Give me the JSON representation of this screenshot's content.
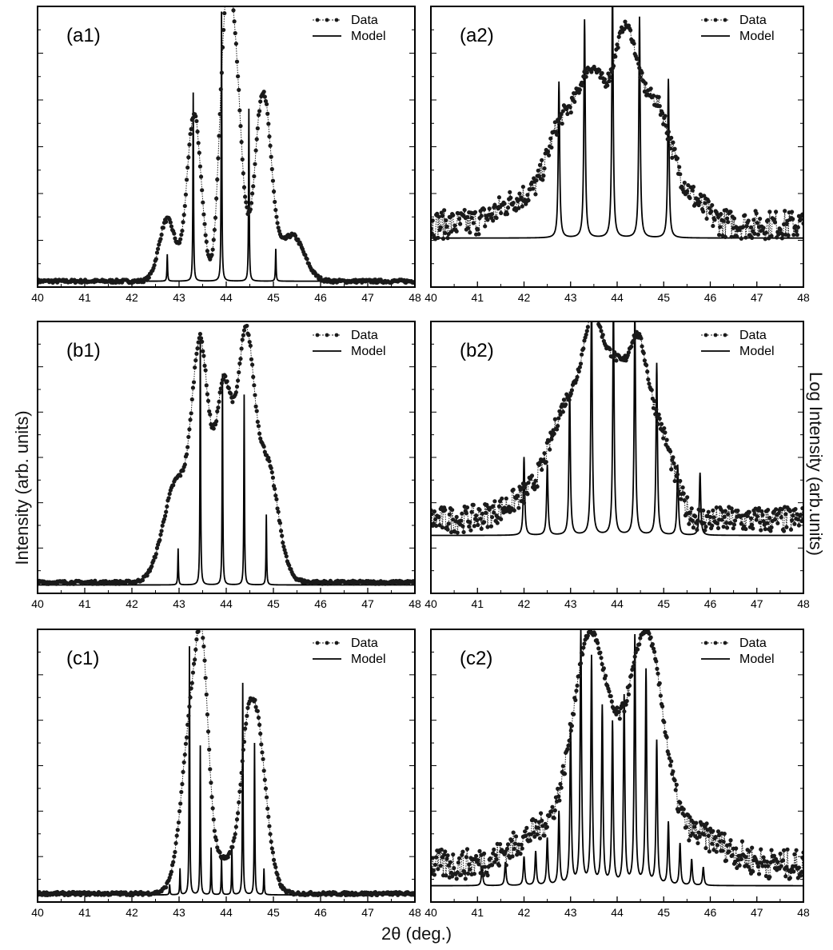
{
  "figure": {
    "ylabel_left": "Intensity (arb. units)",
    "ylabel_right": "Log Intensity (arb.units)",
    "xlabel": "2θ (deg.)"
  },
  "chart_data": [
    {
      "id": "a1",
      "type": "line",
      "panel_label": "(a1)",
      "scale": "linear",
      "xlim": [
        40,
        48
      ],
      "ylim": [
        0,
        1
      ],
      "x_ticks": [
        40,
        41,
        42,
        43,
        44,
        45,
        46,
        47,
        48
      ],
      "legend": [
        "Data",
        "Model"
      ],
      "legend_position": "top-right",
      "data_peaks": [
        [
          42.75,
          0.23,
          0.17
        ],
        [
          43.32,
          0.62,
          0.15
        ],
        [
          43.95,
          0.55,
          0.12
        ],
        [
          44.15,
          0.88,
          0.16
        ],
        [
          44.78,
          0.7,
          0.17
        ],
        [
          45.4,
          0.17,
          0.25
        ]
      ],
      "data_baseline": 0.01,
      "model_lines": [
        [
          42.75,
          0.1
        ],
        [
          43.3,
          0.7
        ],
        [
          43.9,
          1.0
        ],
        [
          44.48,
          0.64
        ],
        [
          45.05,
          0.12
        ]
      ],
      "model_baseline": 0.01
    },
    {
      "id": "a2",
      "type": "line",
      "panel_label": "(a2)",
      "scale": "log",
      "xlim": [
        40,
        48
      ],
      "ylim": [
        0,
        1
      ],
      "x_ticks": [
        40,
        41,
        42,
        43,
        44,
        45,
        46,
        47,
        48
      ],
      "legend": [
        "Data",
        "Model"
      ],
      "legend_position": "top-right",
      "data_peaks": [
        [
          42.8,
          0.32,
          0.3
        ],
        [
          43.45,
          0.53,
          0.3
        ],
        [
          44.18,
          0.68,
          0.28
        ],
        [
          44.85,
          0.4,
          0.3
        ],
        [
          45.5,
          0.1,
          0.35
        ],
        [
          42.0,
          0.1,
          0.5
        ]
      ],
      "data_baseline": 0.22,
      "model_lines": [
        [
          42.75,
          0.58
        ],
        [
          43.3,
          0.81
        ],
        [
          43.9,
          0.92
        ],
        [
          44.48,
          0.82
        ],
        [
          45.1,
          0.59
        ]
      ],
      "model_baseline": 0.17
    },
    {
      "id": "b1",
      "type": "line",
      "panel_label": "(b1)",
      "scale": "linear",
      "xlim": [
        40,
        48
      ],
      "ylim": [
        0,
        1
      ],
      "x_ticks": [
        40,
        41,
        42,
        43,
        44,
        45,
        46,
        47,
        48
      ],
      "legend": [
        "Data",
        "Model"
      ],
      "legend_position": "top-right",
      "data_peaks": [
        [
          42.95,
          0.38,
          0.28
        ],
        [
          43.45,
          0.79,
          0.17
        ],
        [
          43.95,
          0.58,
          0.17
        ],
        [
          44.42,
          0.74,
          0.17
        ],
        [
          44.88,
          0.38,
          0.22
        ],
        [
          44.2,
          0.2,
          0.5
        ]
      ],
      "data_baseline": 0.03,
      "model_lines": [
        [
          42.98,
          0.14
        ],
        [
          43.45,
          0.95
        ],
        [
          43.92,
          0.81
        ],
        [
          44.38,
          0.73
        ],
        [
          44.85,
          0.27
        ]
      ],
      "model_baseline": 0.02
    },
    {
      "id": "b2",
      "type": "line",
      "panel_label": "(b2)",
      "scale": "log",
      "xlim": [
        40,
        48
      ],
      "ylim": [
        0,
        1
      ],
      "x_ticks": [
        40,
        41,
        42,
        43,
        44,
        45,
        46,
        47,
        48
      ],
      "legend": [
        "Data",
        "Model"
      ],
      "legend_position": "top-right",
      "data_peaks": [
        [
          43.0,
          0.4,
          0.38
        ],
        [
          43.5,
          0.55,
          0.22
        ],
        [
          43.95,
          0.48,
          0.22
        ],
        [
          44.42,
          0.57,
          0.22
        ],
        [
          44.9,
          0.33,
          0.3
        ],
        [
          42.3,
          0.1,
          0.6
        ]
      ],
      "data_baseline": 0.27,
      "model_lines": [
        [
          42.0,
          0.3
        ],
        [
          42.5,
          0.27
        ],
        [
          42.98,
          0.55
        ],
        [
          43.45,
          0.93
        ],
        [
          43.92,
          0.88
        ],
        [
          44.38,
          0.86
        ],
        [
          44.85,
          0.66
        ],
        [
          45.3,
          0.27
        ],
        [
          45.78,
          0.24
        ]
      ],
      "model_baseline": 0.21
    },
    {
      "id": "c1",
      "type": "line",
      "panel_label": "(c1)",
      "scale": "linear",
      "xlim": [
        40,
        48
      ],
      "ylim": [
        0,
        1
      ],
      "x_ticks": [
        40,
        41,
        42,
        43,
        44,
        45,
        46,
        47,
        48
      ],
      "legend": [
        "Data",
        "Model"
      ],
      "legend_position": "top-right",
      "data_peaks": [
        [
          43.3,
          0.68,
          0.22
        ],
        [
          43.5,
          0.45,
          0.12
        ],
        [
          44.6,
          0.68,
          0.22
        ],
        [
          44.4,
          0.1,
          0.1
        ],
        [
          43.9,
          0.12,
          0.5
        ]
      ],
      "data_baseline": 0.02,
      "model_lines": [
        [
          43.02,
          0.1
        ],
        [
          43.22,
          0.95
        ],
        [
          43.45,
          0.57
        ],
        [
          43.68,
          0.18
        ],
        [
          43.9,
          0.14
        ],
        [
          44.12,
          0.18
        ],
        [
          44.35,
          0.81
        ],
        [
          44.6,
          0.58
        ],
        [
          44.8,
          0.1
        ],
        [
          42.8,
          0.04
        ]
      ],
      "model_baseline": 0.015
    },
    {
      "id": "c2",
      "type": "line",
      "panel_label": "(c2)",
      "scale": "log",
      "xlim": [
        40,
        48
      ],
      "ylim": [
        0,
        1
      ],
      "x_ticks": [
        40,
        41,
        42,
        43,
        44,
        45,
        46,
        47,
        48
      ],
      "legend": [
        "Data",
        "Model"
      ],
      "legend_position": "top-right",
      "data_peaks": [
        [
          43.4,
          0.65,
          0.35
        ],
        [
          44.65,
          0.68,
          0.35
        ],
        [
          44.0,
          0.3,
          0.7
        ],
        [
          42.4,
          0.12,
          0.6
        ],
        [
          45.8,
          0.1,
          0.6
        ]
      ],
      "data_baseline": 0.13,
      "model_lines": [
        [
          41.1,
          0.07
        ],
        [
          41.6,
          0.09
        ],
        [
          42.0,
          0.11
        ],
        [
          42.25,
          0.13
        ],
        [
          42.5,
          0.18
        ],
        [
          42.75,
          0.28
        ],
        [
          43.0,
          0.6
        ],
        [
          43.22,
          0.97
        ],
        [
          43.45,
          0.87
        ],
        [
          43.68,
          0.68
        ],
        [
          43.9,
          0.62
        ],
        [
          44.15,
          0.72
        ],
        [
          44.38,
          0.95
        ],
        [
          44.62,
          0.82
        ],
        [
          44.85,
          0.55
        ],
        [
          45.1,
          0.24
        ],
        [
          45.35,
          0.16
        ],
        [
          45.6,
          0.1
        ],
        [
          45.85,
          0.07
        ]
      ],
      "model_baseline": 0.05
    }
  ],
  "colors": {
    "data": "#1a1a1a",
    "model": "#000000",
    "axes": "#000000"
  }
}
